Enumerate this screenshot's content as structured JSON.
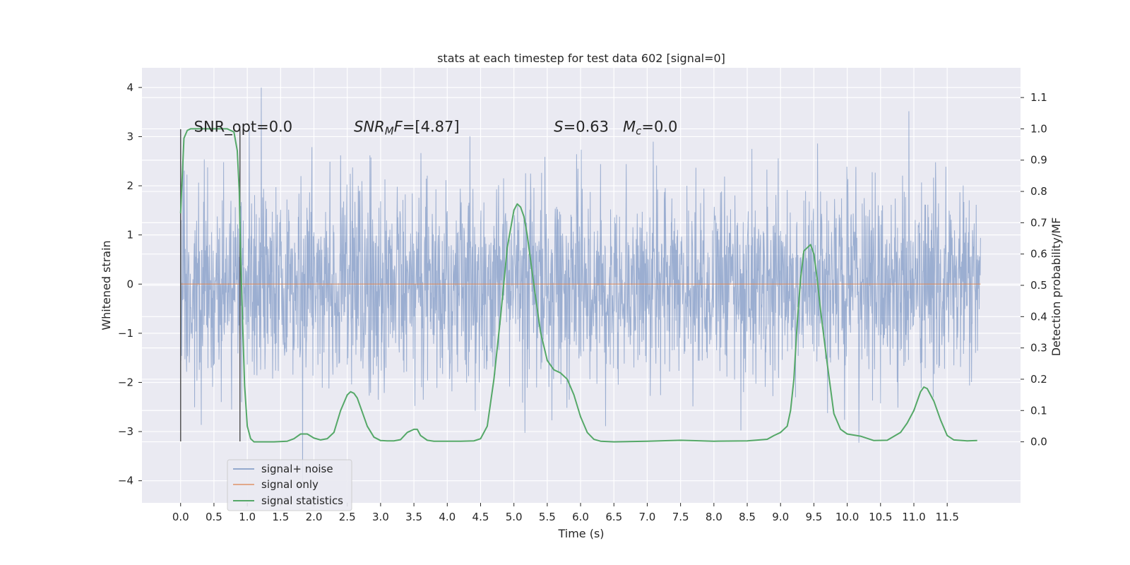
{
  "chart_data": {
    "type": "line",
    "title": "stats at each timestep for test data 602 [signal=0]",
    "xlabel": "Time (s)",
    "ylabel_left": "Whitened strain",
    "ylabel_right": "Detection probability/MF",
    "xlim": [
      -0.58,
      12.6
    ],
    "ylim_left": [
      -4.45,
      4.4
    ],
    "ylim_right": [
      -0.195,
      1.195
    ],
    "grid": true,
    "x_ticks": [
      0.0,
      0.5,
      1.0,
      1.5,
      2.0,
      2.5,
      3.0,
      3.5,
      4.0,
      4.5,
      5.0,
      5.5,
      6.0,
      6.5,
      7.0,
      7.5,
      8.0,
      8.5,
      9.0,
      9.5,
      10.0,
      10.5,
      11.0,
      11.5
    ],
    "x_tick_labels": [
      "0.0",
      "0.5",
      "1.0",
      "1.5",
      "2.0",
      "2.5",
      "3.0",
      "3.5",
      "4.0",
      "4.5",
      "5.0",
      "5.5",
      "6.0",
      "6.5",
      "7.0",
      "7.5",
      "8.0",
      "8.5",
      "9.0",
      "9.5",
      "10.0",
      "10.5",
      "11.0",
      "11.5"
    ],
    "y_left_ticks": [
      -4,
      -3,
      -2,
      -1,
      0,
      1,
      2,
      3,
      4
    ],
    "y_left_tick_labels": [
      "−4",
      "−3",
      "−2",
      "−1",
      "0",
      "1",
      "2",
      "3",
      "4"
    ],
    "y_right_ticks": [
      0.0,
      0.1,
      0.2,
      0.3,
      0.4,
      0.5,
      0.6,
      0.7,
      0.8,
      0.9,
      1.0,
      1.1
    ],
    "y_right_tick_labels": [
      "0.0",
      "0.1",
      "0.2",
      "0.3",
      "0.4",
      "0.5",
      "0.6",
      "0.7",
      "0.8",
      "0.9",
      "1.0",
      "1.1"
    ],
    "annotations": [
      {
        "text": "SNR_opt=0.0",
        "x": 0.2,
        "y": 3.2
      },
      {
        "text": "SNR_M F=[4.87]",
        "x": 2.6,
        "y": 3.2
      },
      {
        "text": "S=0.63   M_c=0.0",
        "x": 5.6,
        "y": 3.2
      }
    ],
    "legend": {
      "position": "lower-left",
      "entries": [
        "signal+ noise",
        "signal only",
        "signal statistics"
      ]
    },
    "series": [
      {
        "name": "signal+ noise",
        "axis": "left",
        "color": "#4c72b0",
        "style": "noise",
        "x_range": [
          0.0,
          12.0
        ],
        "typical_range": [
          -2.0,
          2.0
        ],
        "extremes": [
          -4.05,
          4.0
        ]
      },
      {
        "name": "signal only",
        "axis": "left",
        "color": "#dd8452",
        "x": [
          0.0,
          12.0
        ],
        "values": [
          0.0,
          0.0
        ]
      },
      {
        "name": "signal statistics",
        "axis": "right",
        "color": "#55a868",
        "x": [
          0.0,
          0.05,
          0.1,
          0.15,
          0.2,
          0.3,
          0.4,
          0.5,
          0.6,
          0.7,
          0.8,
          0.85,
          0.88,
          0.9,
          0.93,
          0.96,
          1.0,
          1.05,
          1.1,
          1.2,
          1.4,
          1.6,
          1.7,
          1.8,
          1.9,
          2.0,
          2.1,
          2.2,
          2.3,
          2.4,
          2.5,
          2.55,
          2.6,
          2.65,
          2.7,
          2.8,
          2.9,
          3.0,
          3.1,
          3.2,
          3.3,
          3.4,
          3.5,
          3.55,
          3.6,
          3.7,
          3.8,
          4.0,
          4.2,
          4.4,
          4.5,
          4.6,
          4.7,
          4.8,
          4.9,
          5.0,
          5.05,
          5.1,
          5.15,
          5.2,
          5.3,
          5.4,
          5.5,
          5.6,
          5.7,
          5.8,
          5.9,
          6.0,
          6.1,
          6.2,
          6.3,
          6.5,
          7.0,
          7.5,
          8.0,
          8.5,
          8.8,
          8.9,
          9.0,
          9.1,
          9.15,
          9.2,
          9.25,
          9.3,
          9.35,
          9.4,
          9.45,
          9.5,
          9.55,
          9.6,
          9.7,
          9.8,
          9.9,
          10.0,
          10.2,
          10.4,
          10.6,
          10.8,
          10.9,
          11.0,
          11.1,
          11.15,
          11.2,
          11.3,
          11.4,
          11.5,
          11.6,
          11.8,
          11.95
        ],
        "values": [
          0.73,
          0.97,
          0.995,
          1.0,
          1.0,
          1.0,
          1.0,
          1.0,
          1.0,
          1.0,
          0.99,
          0.93,
          0.8,
          0.6,
          0.38,
          0.18,
          0.05,
          0.01,
          0.0,
          0.0,
          0.0,
          0.002,
          0.01,
          0.025,
          0.025,
          0.012,
          0.006,
          0.01,
          0.03,
          0.1,
          0.15,
          0.16,
          0.155,
          0.14,
          0.11,
          0.05,
          0.015,
          0.004,
          0.003,
          0.003,
          0.007,
          0.03,
          0.04,
          0.04,
          0.02,
          0.005,
          0.002,
          0.002,
          0.002,
          0.003,
          0.01,
          0.05,
          0.2,
          0.4,
          0.62,
          0.74,
          0.76,
          0.75,
          0.72,
          0.66,
          0.5,
          0.35,
          0.26,
          0.23,
          0.22,
          0.2,
          0.15,
          0.08,
          0.03,
          0.008,
          0.002,
          0.0,
          0.002,
          0.005,
          0.002,
          0.003,
          0.008,
          0.02,
          0.03,
          0.05,
          0.1,
          0.2,
          0.38,
          0.52,
          0.61,
          0.62,
          0.63,
          0.6,
          0.52,
          0.42,
          0.25,
          0.09,
          0.04,
          0.025,
          0.018,
          0.004,
          0.005,
          0.03,
          0.06,
          0.1,
          0.16,
          0.175,
          0.17,
          0.13,
          0.07,
          0.02,
          0.006,
          0.003,
          0.004
        ]
      }
    ]
  }
}
